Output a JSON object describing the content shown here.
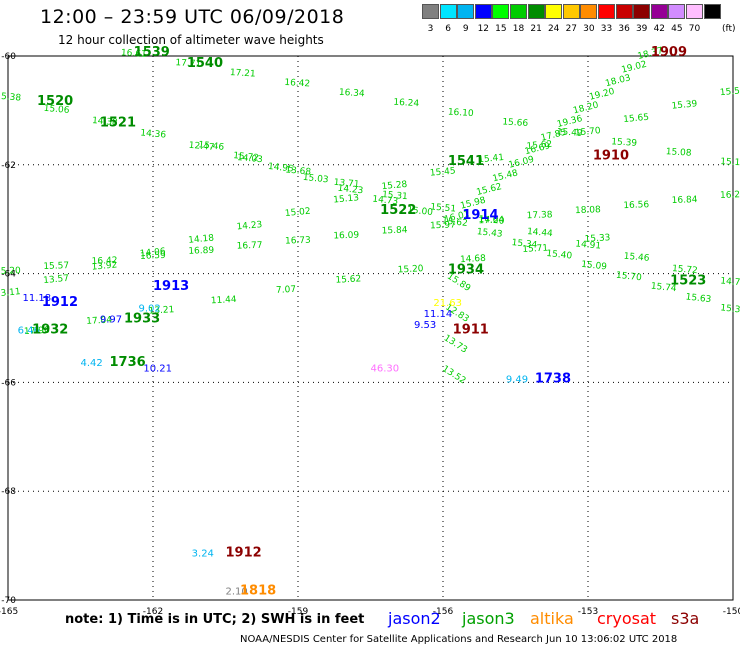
{
  "header": {
    "title": "12:00  –  23:59 UTC 06/09/2018",
    "subtitle": "12 hour collection of altimeter wave heights"
  },
  "color_scale": {
    "unit": "(ft)",
    "bins": [
      {
        "label": "3",
        "color": "#808080"
      },
      {
        "label": "6",
        "color": "#00e5ff"
      },
      {
        "label": "9",
        "color": "#00b4f0"
      },
      {
        "label": "12",
        "color": "#0000ff"
      },
      {
        "label": "15",
        "color": "#00ff00"
      },
      {
        "label": "18",
        "color": "#00cc00"
      },
      {
        "label": "21",
        "color": "#008c00"
      },
      {
        "label": "24",
        "color": "#ffff00"
      },
      {
        "label": "27",
        "color": "#ffc800"
      },
      {
        "label": "30",
        "color": "#ff8c00"
      },
      {
        "label": "33",
        "color": "#ff0000"
      },
      {
        "label": "36",
        "color": "#c80000"
      },
      {
        "label": "39",
        "color": "#8c0000"
      },
      {
        "label": "42",
        "color": "#960096"
      },
      {
        "label": "45",
        "color": "#d28cff"
      },
      {
        "label": "70",
        "color": "#ffbeff"
      },
      {
        "label": "",
        "color": "#000000"
      }
    ]
  },
  "map": {
    "x_ticks": [
      "-165",
      "-162",
      "-159",
      "-156",
      "-153",
      "-150"
    ],
    "y_ticks": [
      "-60",
      "-62",
      "-64",
      "-66",
      "-68",
      "-70"
    ],
    "lon_range": [
      -165,
      -150
    ],
    "lat_range": [
      -70,
      -60
    ]
  },
  "tracks": [
    {
      "sat": "jason3",
      "color": "#00cc00",
      "time": "1539",
      "start": [
        -162.4,
        -60.0
      ],
      "end": [
        -150,
        -62.0
      ],
      "heights": [
        "16.61",
        "17.71",
        "17.21",
        "16.42",
        "16.34",
        "16.24",
        "16.10",
        "15.66",
        "15.49",
        "15.39",
        "15.08",
        "15.15"
      ]
    },
    {
      "sat": "jason3",
      "color": "#00cc00",
      "time": "1520",
      "start": [
        -165,
        -60.8
      ],
      "end": [
        -150,
        -64.2
      ],
      "heights": [
        "15.38",
        "15.06",
        "14.38",
        "14.36",
        "12.47",
        "14.03",
        "13.68",
        "13.71",
        "15.31",
        "15.51",
        "14.20",
        "14.44",
        "14.91",
        "15.46",
        "15.72",
        "14.75"
      ]
    },
    {
      "sat": "jason3",
      "color": "#00cc00",
      "time": "1522",
      "start": [
        -165,
        -64.4
      ],
      "end": [
        -150,
        -60.7
      ],
      "heights": [
        "13.11",
        "13.57",
        "13.92",
        "14.06",
        "14.18",
        "14.23",
        "15.02",
        "15.13",
        "15.28",
        "15.45",
        "15.41",
        "15.62",
        "15.70",
        "15.65",
        "15.39",
        "15.58"
      ]
    },
    {
      "sat": "jason3",
      "color": "#00cc00",
      "time": "1523",
      "start": [
        -165,
        -64.0
      ],
      "end": [
        -150,
        -62.6
      ],
      "heights": [
        "15.20",
        "15.57",
        "16.42",
        "16.59",
        "16.89",
        "16.77",
        "16.73",
        "16.09",
        "15.84",
        "15.97",
        "17.64",
        "17.38",
        "18.08",
        "16.56",
        "16.84",
        "16.20"
      ]
    },
    {
      "sat": "jason3",
      "color": "#00cc00",
      "time": "1541",
      "start": [
        -160.8,
        -61.7
      ],
      "end": [
        -150,
        -64.7
      ],
      "heights": [
        "15.46",
        "15.72",
        "14.95",
        "15.03",
        "14.23",
        "14.73",
        "15.00",
        "15.62",
        "15.43",
        "15.34",
        "15.40",
        "15.09",
        "15.70",
        "15.74",
        "15.63",
        "15.30"
      ]
    },
    {
      "sat": "jason3",
      "color": "#00cc00",
      "time": "1909",
      "start": [
        -155.7,
        -63.0
      ],
      "end": [
        -151.7,
        -60.0
      ],
      "heights": [
        "16.01",
        "15.98",
        "15.62",
        "15.48",
        "16.09",
        "16.69",
        "17.85",
        "19.36",
        "18.20",
        "19.20",
        "18.03",
        "19.02",
        "18.37"
      ]
    },
    {
      "sat": "jason3",
      "color": "#00cc00",
      "time": "1933",
      "start": [
        -164.4,
        -65.1
      ],
      "end": [
        -152.8,
        -63.4
      ],
      "heights": [
        "17.96",
        "17.04",
        "13.21",
        "11.44",
        "7.07",
        "15.62",
        "15.20",
        "14.68",
        "15.71",
        "15.33"
      ]
    },
    {
      "sat": "jason3",
      "color": "#00cc00",
      "time": "1934",
      "start": [
        -155.7,
        -64.2
      ],
      "end": [
        -155.8,
        -65.9
      ],
      "heights": [
        "15.89",
        "12.83",
        "13.73",
        "13.52"
      ]
    }
  ],
  "labels": [
    {
      "text": "1539",
      "color": "#008c00",
      "lon": -162.4,
      "lat": -60.0
    },
    {
      "text": "1540",
      "color": "#008c00",
      "lon": -161.3,
      "lat": -60.2
    },
    {
      "text": "1520",
      "color": "#008c00",
      "lon": -164.4,
      "lat": -60.9
    },
    {
      "text": "1521",
      "color": "#008c00",
      "lon": -163.1,
      "lat": -61.3
    },
    {
      "text": "1541",
      "color": "#008c00",
      "lon": -155.9,
      "lat": -62.0
    },
    {
      "text": "1522",
      "color": "#008c00",
      "lon": -157.3,
      "lat": -62.9
    },
    {
      "text": "1909",
      "color": "#8c0000",
      "lon": -151.7,
      "lat": -60.0
    },
    {
      "text": "1910",
      "color": "#8c0000",
      "lon": -152.9,
      "lat": -61.9
    },
    {
      "text": "1914",
      "color": "#0000ff",
      "lon": -155.6,
      "lat": -63.0
    },
    {
      "text": "1934",
      "color": "#008c00",
      "lon": -155.9,
      "lat": -64.0
    },
    {
      "text": "1523",
      "color": "#008c00",
      "lon": -151.3,
      "lat": -64.2
    },
    {
      "text": "1913",
      "color": "#0000ff",
      "lon": -162.0,
      "lat": -64.3
    },
    {
      "text": "1912",
      "color": "#0000ff",
      "lon": -164.3,
      "lat": -64.6
    },
    {
      "text": "1933",
      "color": "#008c00",
      "lon": -162.6,
      "lat": -64.9
    },
    {
      "text": "1932",
      "color": "#008c00",
      "lon": -164.5,
      "lat": -65.1
    },
    {
      "text": "1911",
      "color": "#8c0000",
      "lon": -155.8,
      "lat": -65.1
    },
    {
      "text": "1736",
      "color": "#008c00",
      "lon": -162.9,
      "lat": -65.7
    },
    {
      "text": "1738",
      "color": "#0000ff",
      "lon": -154.1,
      "lat": -66.0
    },
    {
      "text": "1912",
      "color": "#8c0000",
      "lon": -160.5,
      "lat": -69.2
    },
    {
      "text": "1818",
      "color": "#ff8c00",
      "lon": -160.2,
      "lat": -69.9
    }
  ],
  "points": [
    {
      "text": "11.18",
      "color": "#0000ff",
      "lon": -164.7,
      "lat": -64.5
    },
    {
      "text": "6.46",
      "color": "#00b4f0",
      "lon": -164.8,
      "lat": -65.1
    },
    {
      "text": "9.97",
      "color": "#0000ff",
      "lon": -163.1,
      "lat": -64.9
    },
    {
      "text": "9.02",
      "color": "#00b4f0",
      "lon": -162.3,
      "lat": -64.7
    },
    {
      "text": "4.42",
      "color": "#00b4f0",
      "lon": -163.5,
      "lat": -65.7
    },
    {
      "text": "10.21",
      "color": "#0000ff",
      "lon": -162.2,
      "lat": -65.8
    },
    {
      "text": "21.63",
      "color": "#ffff00",
      "lon": -156.2,
      "lat": -64.6
    },
    {
      "text": "11.14",
      "color": "#0000ff",
      "lon": -156.4,
      "lat": -64.8
    },
    {
      "text": "9.53",
      "color": "#0000ff",
      "lon": -156.6,
      "lat": -65.0
    },
    {
      "text": "46.30",
      "color": "#ff6eff",
      "lon": -157.5,
      "lat": -65.8
    },
    {
      "text": "9.49",
      "color": "#00b4f0",
      "lon": -154.7,
      "lat": -66.0
    },
    {
      "text": "3.24",
      "color": "#00b4f0",
      "lon": -161.2,
      "lat": -69.2
    },
    {
      "text": "2.10",
      "color": "#808080",
      "lon": -160.5,
      "lat": -69.9
    }
  ],
  "legend": {
    "note": "note:  1) Time is in UTC;  2) SWH is in feet",
    "satellites": [
      {
        "name": "jason2",
        "color": "#0000ff"
      },
      {
        "name": "jason3",
        "color": "#00a000"
      },
      {
        "name": "altika",
        "color": "#ff8c00"
      },
      {
        "name": "cryosat",
        "color": "#ff0000"
      },
      {
        "name": "s3a",
        "color": "#8c0000"
      }
    ]
  },
  "footer": "NOAA/NESDIS Center for Satellite Applications and Research    Jun 10 13:06:02 UTC 2018"
}
